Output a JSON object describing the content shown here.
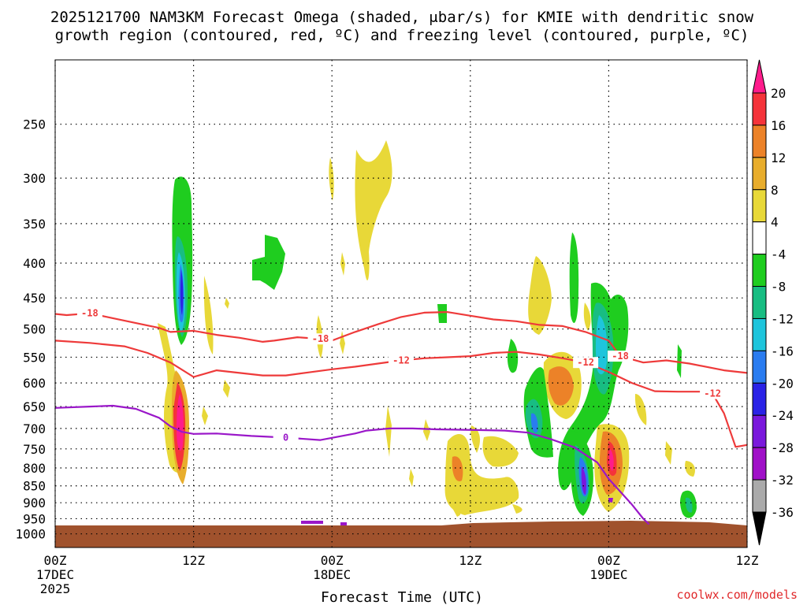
{
  "title_line1": "2025121700 NAM3KM Forecast Omega (shaded, μbar/s) for KMIE with dendritic snow",
  "title_line2": "growth region (contoured, red, ºC) and freezing level (contoured, purple, ºC)",
  "credit": "coolwx.com/models",
  "colors": {
    "red_contour": "#ee3a3a",
    "purple_contour": "#9a17c9",
    "ground": "#a0522d"
  },
  "chart_data": {
    "type": "heatmap",
    "title": "2025121700 NAM3KM Forecast Omega (shaded, μbar/s) for KMIE with dendritic snow growth region (contoured, red, ºC) and freezing level (contoured, purple, ºC)",
    "xlabel": "Forecast Time (UTC)",
    "ylabel": "",
    "xlim_hours": [
      0,
      60
    ],
    "ylim_hPa": [
      1050,
      200
    ],
    "x_ticks": [
      {
        "hour": 0,
        "line1": "00Z",
        "line2": "17DEC",
        "line3": "2025"
      },
      {
        "hour": 12,
        "line1": "12Z",
        "line2": "",
        "line3": ""
      },
      {
        "hour": 24,
        "line1": "00Z",
        "line2": "18DEC",
        "line3": ""
      },
      {
        "hour": 36,
        "line1": "12Z",
        "line2": "",
        "line3": ""
      },
      {
        "hour": 48,
        "line1": "00Z",
        "line2": "19DEC",
        "line3": ""
      },
      {
        "hour": 60,
        "line1": "12Z",
        "line2": "",
        "line3": ""
      }
    ],
    "y_ticks": [
      250,
      300,
      350,
      400,
      450,
      500,
      550,
      600,
      650,
      700,
      750,
      800,
      850,
      900,
      950,
      1000
    ],
    "grid": true,
    "colorbar": {
      "label_values": [
        20,
        16,
        12,
        8,
        4,
        -4,
        -8,
        -12,
        -16,
        -20,
        -24,
        -28,
        -32,
        -36
      ],
      "colors": [
        "#ff1c8c",
        "#f5333a",
        "#ec8228",
        "#e8ad2c",
        "#e8d838",
        "#ffffff",
        "#1fcd1f",
        "#18bd82",
        "#1ec5dc",
        "#2a7cf0",
        "#2a22e6",
        "#7a18dc",
        "#a010c8",
        "#aaaaaa",
        "#000000"
      ]
    },
    "series": [
      {
        "name": "-18",
        "kind": "red contour",
        "points": [
          [
            0,
            475
          ],
          [
            1,
            477
          ],
          [
            3,
            474
          ],
          [
            5,
            482
          ],
          [
            7,
            490
          ],
          [
            9,
            498
          ],
          [
            10,
            505
          ],
          [
            12,
            503
          ],
          [
            14,
            510
          ],
          [
            16,
            515
          ],
          [
            18,
            522
          ],
          [
            19,
            520
          ],
          [
            21,
            514
          ],
          [
            23,
            517
          ],
          [
            24,
            520
          ],
          [
            26,
            505
          ],
          [
            28,
            492
          ],
          [
            30,
            480
          ],
          [
            32,
            473
          ],
          [
            34,
            472
          ],
          [
            36,
            478
          ],
          [
            38,
            484
          ],
          [
            40,
            487
          ],
          [
            42,
            493
          ],
          [
            44,
            495
          ],
          [
            46,
            505
          ],
          [
            48,
            520
          ],
          [
            49,
            548
          ],
          [
            51,
            560
          ],
          [
            53,
            556
          ],
          [
            55,
            562
          ],
          [
            58,
            575
          ],
          [
            60,
            580
          ]
        ]
      },
      {
        "name": "-12",
        "kind": "red contour",
        "points": [
          [
            0,
            520
          ],
          [
            3,
            524
          ],
          [
            6,
            530
          ],
          [
            8,
            542
          ],
          [
            10,
            560
          ],
          [
            12,
            588
          ],
          [
            14,
            575
          ],
          [
            16,
            580
          ],
          [
            18,
            585
          ],
          [
            20,
            585
          ],
          [
            22,
            579
          ],
          [
            24,
            573
          ],
          [
            26,
            568
          ],
          [
            28,
            562
          ],
          [
            30,
            556
          ],
          [
            32,
            552
          ],
          [
            34,
            550
          ],
          [
            36,
            548
          ],
          [
            38,
            542
          ],
          [
            40,
            540
          ],
          [
            42,
            545
          ],
          [
            44,
            552
          ],
          [
            46,
            560
          ],
          [
            48,
            578
          ],
          [
            50,
            600
          ],
          [
            52,
            617
          ],
          [
            54,
            618
          ],
          [
            56,
            618
          ],
          [
            57,
            622
          ],
          [
            58,
            665
          ],
          [
            59,
            745
          ],
          [
            60,
            740
          ]
        ]
      },
      {
        "name": "0",
        "kind": "purple contour",
        "points": [
          [
            0,
            653
          ],
          [
            3,
            650
          ],
          [
            5,
            648
          ],
          [
            7,
            655
          ],
          [
            9,
            675
          ],
          [
            10,
            695
          ],
          [
            11,
            708
          ],
          [
            12,
            713
          ],
          [
            14,
            712
          ],
          [
            17,
            718
          ],
          [
            20,
            722
          ],
          [
            23,
            728
          ],
          [
            26,
            712
          ],
          [
            27,
            705
          ],
          [
            29,
            700
          ],
          [
            31,
            700
          ],
          [
            33,
            702
          ],
          [
            35,
            703
          ],
          [
            37,
            704
          ],
          [
            39,
            705
          ],
          [
            41,
            710
          ],
          [
            43,
            726
          ],
          [
            45,
            746
          ],
          [
            47,
            785
          ],
          [
            48,
            830
          ],
          [
            50,
            905
          ],
          [
            51,
            950
          ],
          [
            51.5,
            968
          ]
        ]
      }
    ]
  }
}
